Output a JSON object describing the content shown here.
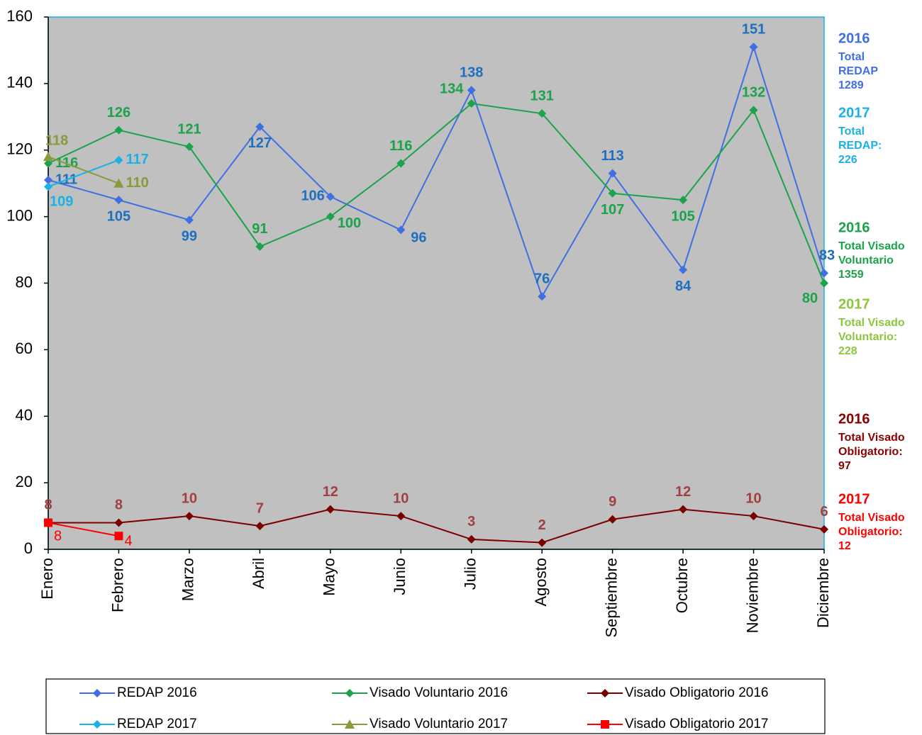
{
  "chart_data": {
    "type": "line",
    "categories": [
      "Enero",
      "Febrero",
      "Marzo",
      "Abril",
      "Mayo",
      "Junio",
      "Julio",
      "Agosto",
      "Septiembre",
      "Octubre",
      "Noviembre",
      "Diciembre"
    ],
    "series": [
      {
        "name": "REDAP 2016",
        "color": "#3f6fe3",
        "label_color": "#1f6fbf",
        "marker": "diamond",
        "values": [
          111,
          105,
          99,
          127,
          106,
          96,
          138,
          76,
          113,
          84,
          151,
          83
        ]
      },
      {
        "name": "Visado Voluntario 2016",
        "color": "#1aa34a",
        "label_color": "#1aa34a",
        "marker": "diamond",
        "values": [
          116,
          126,
          121,
          91,
          100,
          116,
          134,
          131,
          107,
          105,
          132,
          80
        ]
      },
      {
        "name": "Visado Obligatorio 2016",
        "color": "#7a0000",
        "label_color": "#a04040",
        "marker": "diamond",
        "values": [
          8,
          8,
          10,
          7,
          12,
          10,
          3,
          2,
          9,
          12,
          10,
          6
        ]
      },
      {
        "name": "REDAP 2017",
        "color": "#1ab0e8",
        "label_color": "#1ab0e8",
        "marker": "diamond",
        "values": [
          109,
          117,
          null,
          null,
          null,
          null,
          null,
          null,
          null,
          null,
          null,
          null
        ]
      },
      {
        "name": "Visado Voluntario 2017",
        "color": "#8a9a3a",
        "label_color": "#8a9a3a",
        "marker": "triangle",
        "values": [
          118,
          110,
          null,
          null,
          null,
          null,
          null,
          null,
          null,
          null,
          null,
          null
        ]
      },
      {
        "name": "Visado Obligatorio 2017",
        "color": "#ff0000",
        "label_color": "#ff0000",
        "marker": "square",
        "values": [
          8,
          4,
          null,
          null,
          null,
          null,
          null,
          null,
          null,
          null,
          null,
          null
        ]
      }
    ],
    "ylim": [
      0,
      160
    ],
    "yticks": [
      0,
      20,
      40,
      60,
      80,
      100,
      120,
      140,
      160
    ],
    "annotations": [
      {
        "lines": [
          "2016",
          "Total",
          "REDAP",
          "1289"
        ],
        "color": "#3f6fe3"
      },
      {
        "lines": [
          "2017",
          "Total",
          "REDAP:",
          "226"
        ],
        "color": "#1ab0e8"
      },
      {
        "lines": [
          "2016",
          "Total Visado",
          "Voluntario",
          "1359"
        ],
        "color": "#1aa34a"
      },
      {
        "lines": [
          "2017",
          "Total Visado",
          "Voluntario:",
          "228"
        ],
        "color": "#8cc63f"
      },
      {
        "lines": [
          "2016",
          "Total Visado",
          "Obligatorio:",
          "97"
        ],
        "color": "#8b0000"
      },
      {
        "lines": [
          "2017",
          "Total Visado",
          "Obligatorio:",
          "12"
        ],
        "color": "#ff0000"
      }
    ]
  }
}
